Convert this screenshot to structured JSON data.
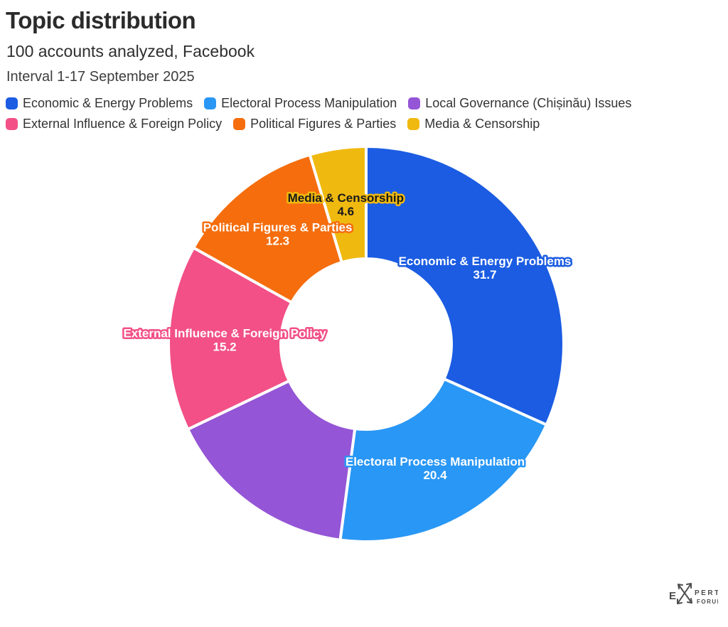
{
  "chart_data": {
    "type": "pie",
    "variant": "donut",
    "title": "Topic distribution",
    "subtitle": "100 accounts analyzed, Facebook",
    "note": "Interval 1-17 September 2025",
    "values_unit": "percent_share",
    "hole_ratio": 0.43,
    "start_angle_deg": 0,
    "direction": "clockwise",
    "legend_position": "top",
    "slices": [
      {
        "label": "Economic & Energy Problems",
        "value": 31.7,
        "color": "#1b5ce2",
        "show_label": true,
        "label_text_color": "#ffffff"
      },
      {
        "label": "Electoral Process Manipulation",
        "value": 20.4,
        "color": "#2997f5",
        "show_label": true,
        "label_text_color": "#ffffff"
      },
      {
        "label": "Local Governance (Chișinău) Issues",
        "value": 15.8,
        "color": "#9455d6",
        "show_label": false,
        "label_text_color": "#ffffff"
      },
      {
        "label": "External Influence & Foreign Policy",
        "value": 15.2,
        "color": "#f25086",
        "show_label": true,
        "label_text_color": "#ffffff"
      },
      {
        "label": "Political Figures & Parties",
        "value": 12.3,
        "color": "#f56d0d",
        "show_label": true,
        "label_text_color": "#ffffff"
      },
      {
        "label": "Media & Censorship",
        "value": 4.6,
        "color": "#f0b910",
        "show_label": true,
        "label_text_color": "#1a1a1a"
      }
    ]
  },
  "watermark": {
    "alt": "EXPERT FORUM",
    "part_e": "E",
    "part_pert": "PERT",
    "part_forum": "FORUM"
  }
}
